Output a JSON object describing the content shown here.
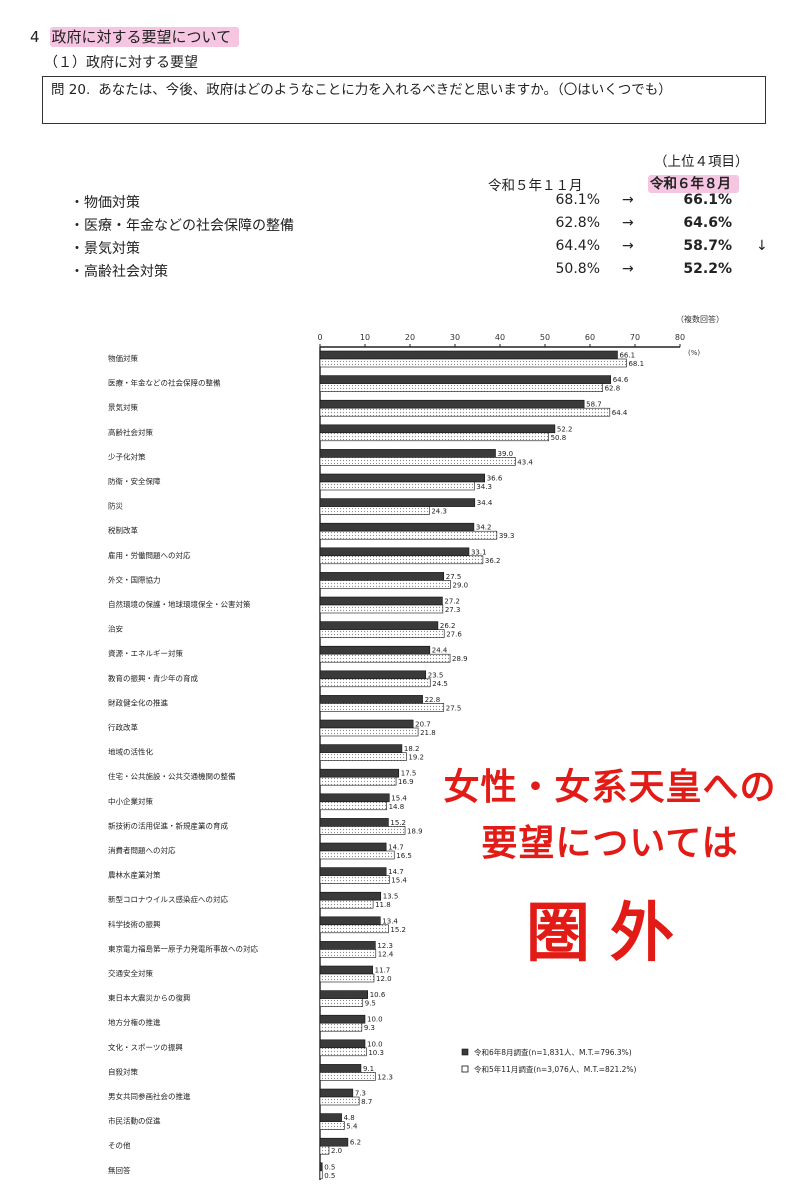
{
  "section": {
    "number": "4",
    "title": "政府に対する要望について"
  },
  "subsection": {
    "title": "（１）政府に対する要望"
  },
  "question": {
    "label": "問 20.",
    "text": "あなたは、今後、政府はどのようなことに力を入れるべきだと思いますか。（〇はいくつでも）"
  },
  "top4": {
    "note": "（上位４項目）",
    "prev_header": "令和５年１１月",
    "curr_header": "令和６年８月",
    "arrow": "→",
    "rows": [
      {
        "label": "・物価対策",
        "prev": "68.1%",
        "curr": "66.1%",
        "trend": ""
      },
      {
        "label": "・医療・年金などの社会保障の整備",
        "prev": "62.8%",
        "curr": "64.6%",
        "trend": ""
      },
      {
        "label": "・景気対策",
        "prev": "64.4%",
        "curr": "58.7%",
        "trend": "↓"
      },
      {
        "label": "・高齢社会対策",
        "prev": "50.8%",
        "curr": "52.2%",
        "trend": ""
      }
    ]
  },
  "chart_data": {
    "type": "bar",
    "orientation": "horizontal",
    "note": "（複数回答）",
    "unit": "(%)",
    "xlim": [
      0,
      80
    ],
    "ticks": [
      0,
      10,
      20,
      30,
      40,
      50,
      60,
      70,
      80
    ],
    "categories": [
      "物価対策",
      "医療・年金などの社会保障の整備",
      "景気対策",
      "高齢社会対策",
      "少子化対策",
      "防衛・安全保障",
      "防災",
      "税制改革",
      "雇用・労働問題への対応",
      "外交・国際協力",
      "自然環境の保護・地球環境保全・公害対策",
      "治安",
      "資源・エネルギー対策",
      "教育の振興・青少年の育成",
      "財政健全化の推進",
      "行政改革",
      "地域の活性化",
      "住宅・公共施設・公共交通機関の整備",
      "中小企業対策",
      "新技術の活用促進・新規産業の育成",
      "消費者問題への対応",
      "農林水産業対策",
      "新型コロナウイルス感染症への対応",
      "科学技術の振興",
      "東京電力福島第一原子力発電所事故への対応",
      "交通安全対策",
      "東日本大震災からの復興",
      "地方分権の推進",
      "文化・スポーツの振興",
      "自殺対策",
      "男女共同参画社会の推進",
      "市民活動の促進",
      "その他",
      "無回答"
    ],
    "series": [
      {
        "name": "令和6年8月調査(n=1,831人、M.T.=796.3%)",
        "style": "dark",
        "values": [
          66.1,
          64.6,
          58.7,
          52.2,
          39.0,
          36.6,
          34.4,
          34.2,
          33.1,
          27.5,
          27.2,
          26.2,
          24.4,
          23.5,
          22.8,
          20.7,
          18.2,
          17.5,
          15.4,
          15.2,
          14.7,
          14.7,
          13.5,
          13.4,
          12.3,
          11.7,
          10.6,
          10.0,
          10.0,
          9.1,
          7.3,
          4.8,
          6.2,
          0.5
        ]
      },
      {
        "name": "令和5年11月調査(n=3,076人、M.T.=821.2%)",
        "style": "light",
        "values": [
          68.1,
          62.8,
          64.4,
          50.8,
          43.4,
          34.3,
          24.3,
          39.3,
          36.2,
          29.0,
          27.3,
          27.6,
          28.9,
          24.5,
          27.5,
          21.8,
          19.2,
          16.9,
          14.8,
          18.9,
          16.5,
          15.4,
          11.8,
          15.2,
          12.4,
          12.0,
          9.5,
          9.3,
          10.3,
          12.3,
          8.7,
          5.4,
          2.0,
          0.5
        ]
      }
    ]
  },
  "overlay": {
    "line1": "女性・女系天皇への",
    "line2": "要望については",
    "line3": "圏外"
  },
  "colors": {
    "highlight": "#ec96c8",
    "overlay_text": "#e21b16",
    "bar_dark": "#3a3a3a",
    "bar_light": "#ffffff"
  }
}
